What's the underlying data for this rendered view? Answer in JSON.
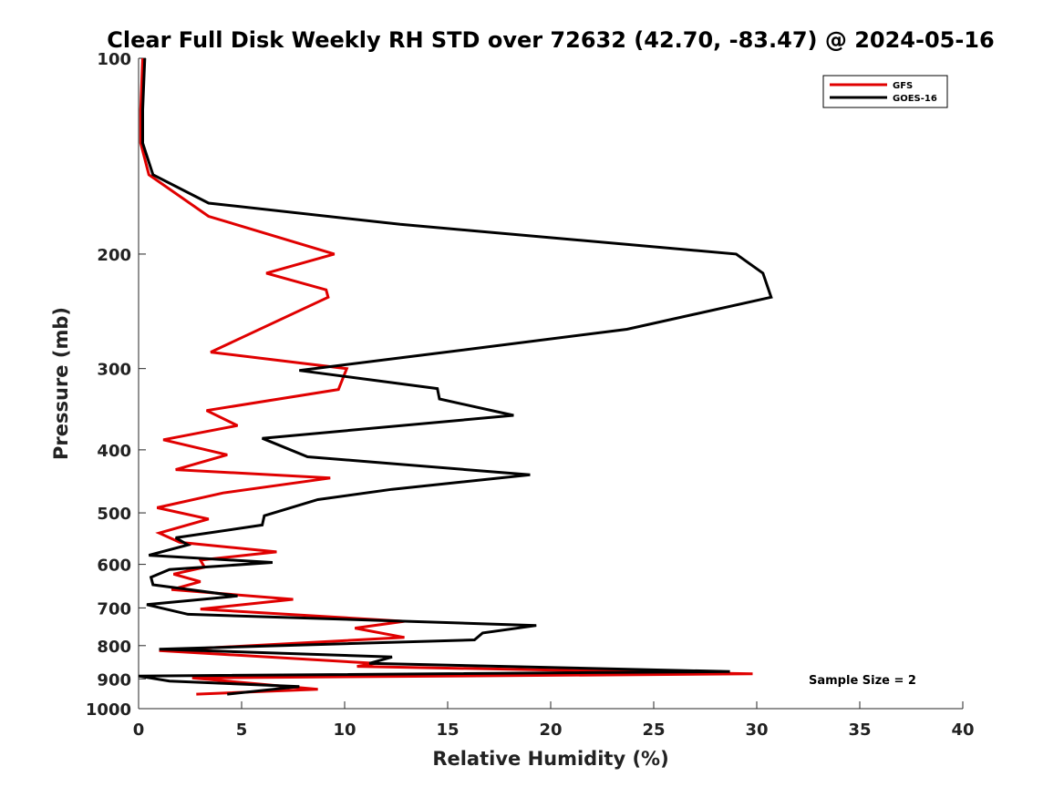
{
  "chart_data": {
    "type": "line",
    "title": "Clear Full Disk Weekly RH STD over 72632 (42.70, -83.47) @ 2024-05-16",
    "xlabel": "Relative Humidity (%)",
    "ylabel": "Pressure (mb)",
    "xlim": [
      0,
      40
    ],
    "ylim": [
      100,
      1000
    ],
    "yscale": "log",
    "y_reversed": true,
    "x_ticks": [
      "0",
      "5",
      "10",
      "15",
      "20",
      "25",
      "30",
      "35",
      "40"
    ],
    "y_ticks": [
      "100",
      "200",
      "300",
      "400",
      "500",
      "600",
      "700",
      "800",
      "900",
      "1000"
    ],
    "y_tick_values": [
      100,
      200,
      300,
      400,
      500,
      600,
      700,
      800,
      900,
      1000
    ],
    "x_tick_values": [
      0,
      5,
      10,
      15,
      20,
      25,
      30,
      35,
      40
    ],
    "grid": false,
    "legend_position": "top-right",
    "annotation": "Sample Size = 2",
    "series": [
      {
        "name": "GFS",
        "color": "#e00000",
        "x": [
          0.2,
          0.1,
          0.1,
          0.5,
          3.4,
          9.5,
          6.2,
          9.1,
          9.2,
          3.5,
          10.1,
          9.7,
          3.3,
          4.8,
          1.2,
          4.3,
          1.8,
          9.3,
          4.1,
          0.9,
          3.4,
          1.0,
          2.0,
          6.7,
          3.0,
          3.2,
          1.7,
          3.0,
          1.6,
          7.5,
          3.0,
          12.9,
          10.5,
          12.9,
          1.0,
          11.5,
          10.6,
          29.8,
          2.6,
          8.7,
          2.8
        ],
        "y": [
          100,
          120,
          135,
          151,
          175,
          200,
          214,
          227,
          233,
          283,
          300,
          323,
          348,
          367,
          386,
          407,
          429,
          442,
          466,
          491,
          511,
          537,
          555,
          574,
          591,
          606,
          621,
          638,
          656,
          679,
          703,
          734,
          752,
          777,
          814,
          852,
          861,
          884,
          897,
          934,
          950
        ]
      },
      {
        "name": "GOES-16",
        "color": "#000000",
        "x": [
          0.3,
          0.2,
          0.2,
          0.7,
          3.4,
          12.7,
          29.0,
          30.3,
          30.7,
          23.7,
          13.8,
          7.8,
          14.5,
          14.6,
          18.2,
          6.0,
          8.2,
          19.0,
          12.3,
          8.7,
          6.1,
          6.0,
          1.8,
          2.4,
          0.5,
          6.5,
          1.5,
          0.6,
          0.7,
          4.8,
          0.4,
          2.4,
          19.3,
          16.7,
          16.3,
          5.1,
          1.0,
          12.3,
          11.2,
          28.7,
          0.0,
          1.5,
          7.8,
          4.3
        ],
        "y": [
          100,
          120,
          135,
          151,
          167,
          180,
          200,
          214,
          233,
          261,
          286,
          302,
          322,
          334,
          354,
          384,
          410,
          437,
          460,
          477,
          505,
          522,
          546,
          560,
          581,
          596,
          611,
          628,
          645,
          671,
          692,
          716,
          745,
          765,
          784,
          803,
          810,
          833,
          852,
          877,
          891,
          907,
          925,
          950
        ]
      }
    ]
  }
}
